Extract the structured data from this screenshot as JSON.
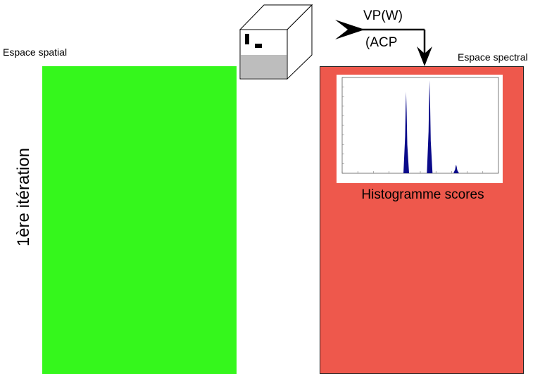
{
  "labels": {
    "spatial_space": "Espace spatial",
    "spectral_space": "Espace spectral",
    "iteration": "1ère itération",
    "vp": "VP(W)",
    "acp": "(ACP",
    "histogram_title": "Histogramme scores"
  },
  "colors": {
    "spatial_panel": "#35f71c",
    "spectral_panel": "#ee584c",
    "histogram_bars": "#0a0a8a"
  },
  "icons": {
    "data_cube": "cube-icon",
    "flow_arrow": "arrow-icon"
  },
  "chart_data": {
    "type": "bar",
    "title": "",
    "xlabel": "",
    "ylabel": "",
    "peaks": [
      {
        "x": 0.41,
        "height": 0.85
      },
      {
        "x": 0.56,
        "height": 0.97
      },
      {
        "x": 0.73,
        "height": 0.09
      }
    ]
  }
}
